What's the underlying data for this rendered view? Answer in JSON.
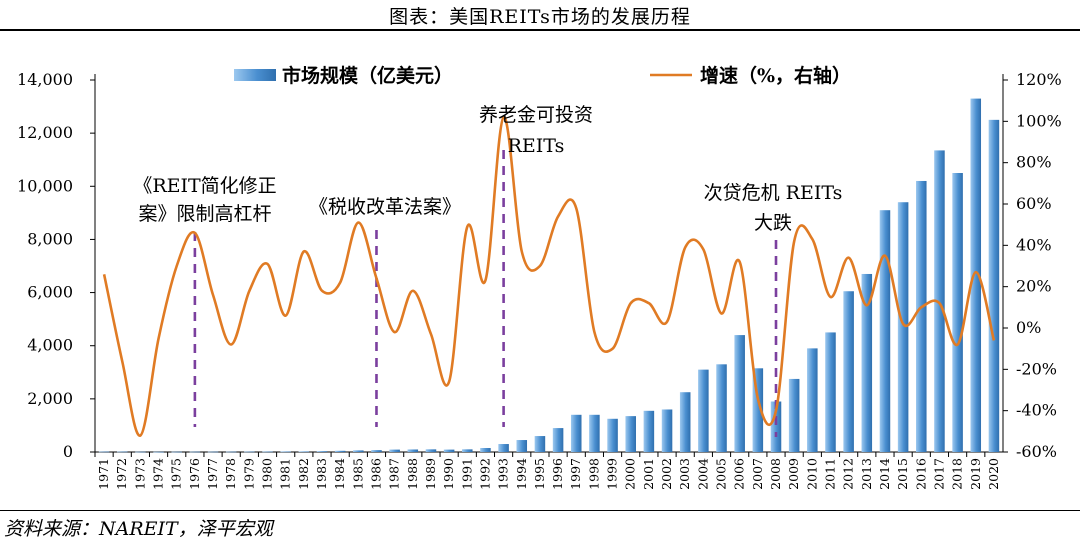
{
  "page": {
    "title": "图表：美国REITs市场的发展历程",
    "source": "资料来源：NAREIT，泽平宏观"
  },
  "colors": {
    "bar": "#4a8fd0",
    "line": "#e07b24",
    "marker": "#7b3f9e"
  },
  "chart_data": {
    "type": "bar+line",
    "x": [
      "1971",
      "1972",
      "1973",
      "1974",
      "1975",
      "1976",
      "1977",
      "1978",
      "1979",
      "1980",
      "1981",
      "1982",
      "1983",
      "1984",
      "1985",
      "1986",
      "1987",
      "1988",
      "1989",
      "1990",
      "1991",
      "1992",
      "1993",
      "1994",
      "1995",
      "1996",
      "1997",
      "1998",
      "1999",
      "2000",
      "2001",
      "2002",
      "2003",
      "2004",
      "2005",
      "2006",
      "2007",
      "2008",
      "2009",
      "2010",
      "2011",
      "2012",
      "2013",
      "2014",
      "2015",
      "2016",
      "2017",
      "2018",
      "2019",
      "2020"
    ],
    "series": [
      {
        "name": "市场规模（亿美元）",
        "type": "bar",
        "axis": "left",
        "values": [
          15,
          15,
          10,
          8,
          10,
          12,
          12,
          13,
          15,
          16,
          18,
          20,
          30,
          45,
          60,
          70,
          90,
          95,
          100,
          90,
          100,
          150,
          300,
          450,
          600,
          900,
          1400,
          1400,
          1250,
          1350,
          1550,
          1600,
          2250,
          3100,
          3300,
          4400,
          3150,
          1900,
          2750,
          3900,
          4500,
          6050,
          6700,
          9100,
          9400,
          10200,
          11350,
          10500,
          13300,
          12500
        ]
      },
      {
        "name": "增速（%，右轴）",
        "type": "line",
        "axis": "right",
        "values": [
          26,
          -16,
          -52,
          -5,
          30,
          46,
          16,
          -8,
          18,
          31,
          6,
          37,
          18,
          22,
          51,
          24,
          -2,
          18,
          -3,
          -26,
          49,
          23,
          102,
          37,
          30,
          54,
          58,
          -2,
          -10,
          12,
          12,
          3,
          39,
          38,
          7,
          32,
          -34,
          -40,
          42,
          43,
          15,
          34,
          11,
          35,
          2,
          10,
          12,
          -8,
          27,
          -6
        ]
      }
    ],
    "y_left": {
      "range": [
        0,
        14000
      ],
      "ticks": [
        "0",
        "2,000",
        "4,000",
        "6,000",
        "8,000",
        "10,000",
        "12,000",
        "14,000"
      ]
    },
    "y_right": {
      "range": [
        -60,
        120
      ],
      "ticks": [
        "-60%",
        "-40%",
        "-20%",
        "0%",
        "20%",
        "40%",
        "60%",
        "80%",
        "100%",
        "120%"
      ]
    },
    "legend": {
      "position": "top"
    },
    "annotations": [
      {
        "year": "1976",
        "lines": [
          "《REIT简化修正",
          "案》限制高杠杆"
        ]
      },
      {
        "year": "1986",
        "lines": [
          "《税收改革法案》"
        ]
      },
      {
        "year": "1993",
        "lines": [
          "养老金可投资",
          "REITs"
        ]
      },
      {
        "year": "2008",
        "lines": [
          "次贷危机 REITs",
          "大跌"
        ]
      }
    ]
  }
}
